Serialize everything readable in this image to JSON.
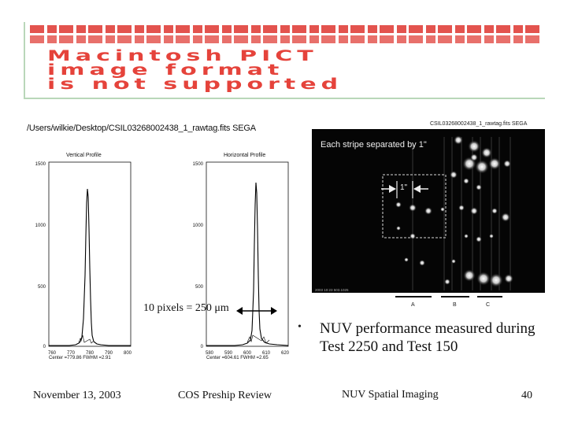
{
  "pict_notice": {
    "line1": "Macintosh PICT",
    "line2": "image format",
    "line3": "is not supported"
  },
  "figure": {
    "path": "/Users/wilkie/Desktop/CSIL03268002438_1_rawtag.fits  SEGA",
    "vertical_profile": {
      "title": "Vertical Profile",
      "y_ticks": [
        "1500",
        "1000",
        "500",
        "0"
      ],
      "x_ticks": [
        "760",
        "770",
        "780",
        "790",
        "800"
      ],
      "stats": "Center =779.86  FWHM =2.91"
    },
    "horizontal_profile": {
      "title": "Horizontal Profile",
      "y_ticks": [
        "1500",
        "1000",
        "500",
        "0"
      ],
      "x_ticks": [
        "580",
        "590",
        "600",
        "610",
        "620"
      ],
      "stats": "Center =604.61  FWHM =2.65"
    },
    "scale_label": "10 pixels = 250 μm",
    "image": {
      "title": "CSIL03268002438_1_rawtag.fits  SEGA",
      "stripe_text": "Each stripe separated by 1\"",
      "arcsec_label": "1\"",
      "footer": "2003 10:23   503.1025",
      "stripe_letters": [
        "A",
        "B",
        "C"
      ]
    }
  },
  "bullet": {
    "text": "NUV performance measured during Test 2250 and Test 150"
  },
  "footer": {
    "date": "November 13, 2003",
    "event": "COS Preship Review",
    "topic": "NUV Spatial Imaging",
    "page": "40"
  }
}
